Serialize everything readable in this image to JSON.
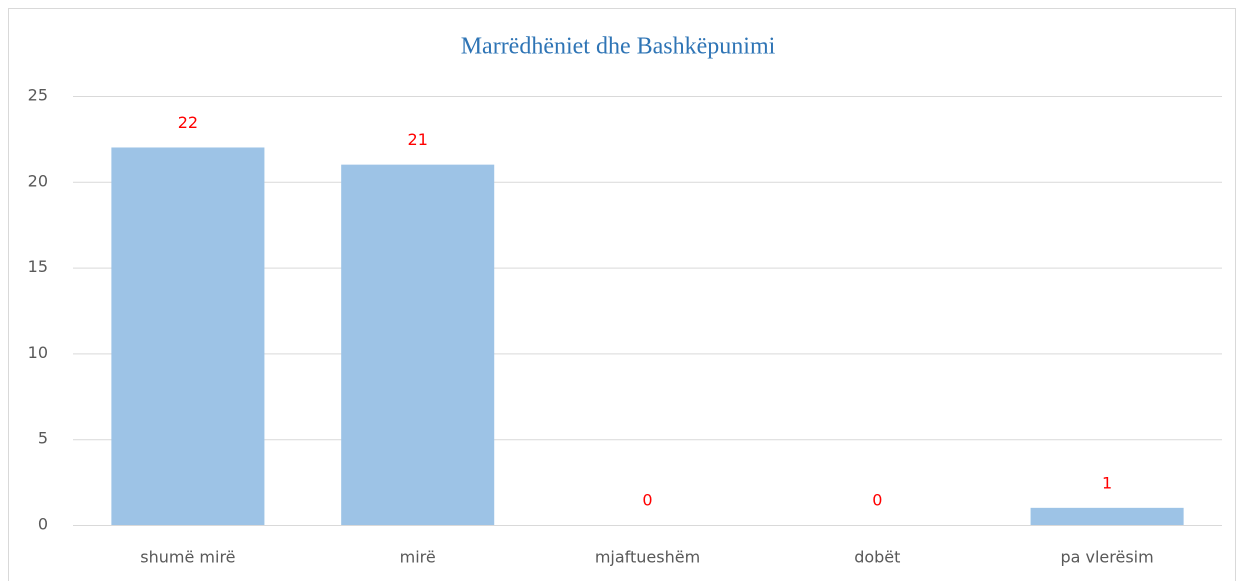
{
  "chart_data": {
    "type": "bar",
    "title": "Marrëdhëniet dhe Bashkëpunimi",
    "categories": [
      "shumë mirë",
      "mirë",
      "mjaftueshëm",
      "dobët",
      "pa vlerësim"
    ],
    "values": [
      22,
      21,
      0,
      0,
      1
    ],
    "color": "#9dc3e6",
    "label_color": "#ff0000",
    "ylim": [
      0,
      25
    ],
    "yticks": [
      0,
      5,
      10,
      15,
      20,
      25
    ],
    "grid": true,
    "data_labels": true
  }
}
